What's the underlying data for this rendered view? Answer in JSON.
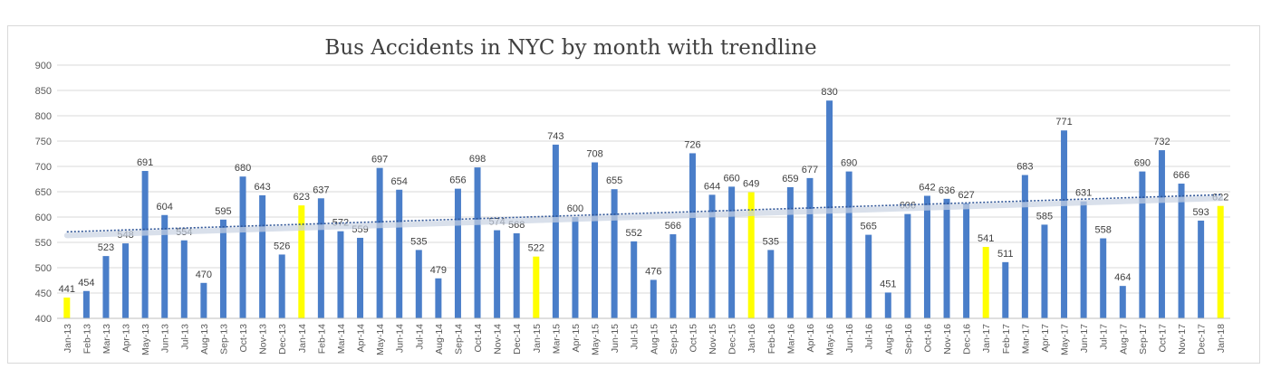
{
  "chart_data": {
    "type": "bar",
    "title": "Bus Accidents in NYC by month with trendline",
    "xlabel": "",
    "ylabel": "",
    "ylim": [
      400,
      900
    ],
    "yticks": [
      400,
      450,
      500,
      550,
      600,
      650,
      700,
      750,
      800,
      850,
      900
    ],
    "grid": true,
    "trendline": true,
    "colors": {
      "bar": "#4a7ec9",
      "highlight": "#ffff00",
      "trend": "#2f5597",
      "grid": "#d9d9d9"
    },
    "categories": [
      "Jan-13",
      "Feb-13",
      "Mar-13",
      "Apr-13",
      "May-13",
      "Jun-13",
      "Jul-13",
      "Aug-13",
      "Sep-13",
      "Oct-13",
      "Nov-13",
      "Dec-13",
      "Jan-14",
      "Feb-14",
      "Mar-14",
      "Apr-14",
      "May-14",
      "Jun-14",
      "Jul-14",
      "Aug-14",
      "Sep-14",
      "Oct-14",
      "Nov-14",
      "Dec-14",
      "Jan-15",
      "Mar-15",
      "Apr-15",
      "May-15",
      "Jun-15",
      "Jul-15",
      "Aug-15",
      "Sep-15",
      "Oct-15",
      "Nov-15",
      "Dec-15",
      "Jan-16",
      "Feb-16",
      "Mar-16",
      "Apr-16",
      "May-16",
      "Jun-16",
      "Jul-16",
      "Aug-16",
      "Sep-16",
      "Oct-16",
      "Nov-16",
      "Dec-16",
      "Jan-17",
      "Feb-17",
      "Mar-17",
      "Apr-17",
      "May-17",
      "Jun-17",
      "Jul-17",
      "Aug-17",
      "Sep-17",
      "Oct-17",
      "Nov-17",
      "Dec-17",
      "Jan-18"
    ],
    "values": [
      441,
      454,
      523,
      548,
      691,
      604,
      554,
      470,
      595,
      680,
      643,
      526,
      623,
      637,
      572,
      559,
      697,
      654,
      535,
      479,
      656,
      698,
      574,
      568,
      522,
      743,
      600,
      708,
      655,
      552,
      476,
      566,
      726,
      644,
      660,
      649,
      535,
      659,
      677,
      830,
      690,
      565,
      451,
      606,
      642,
      636,
      627,
      541,
      511,
      683,
      585,
      771,
      631,
      558,
      464,
      690,
      732,
      666,
      593,
      622
    ],
    "highlighted": [
      "Jan-13",
      "Jan-14",
      "Jan-15",
      "Jan-16",
      "Jan-17",
      "Jan-18"
    ]
  }
}
